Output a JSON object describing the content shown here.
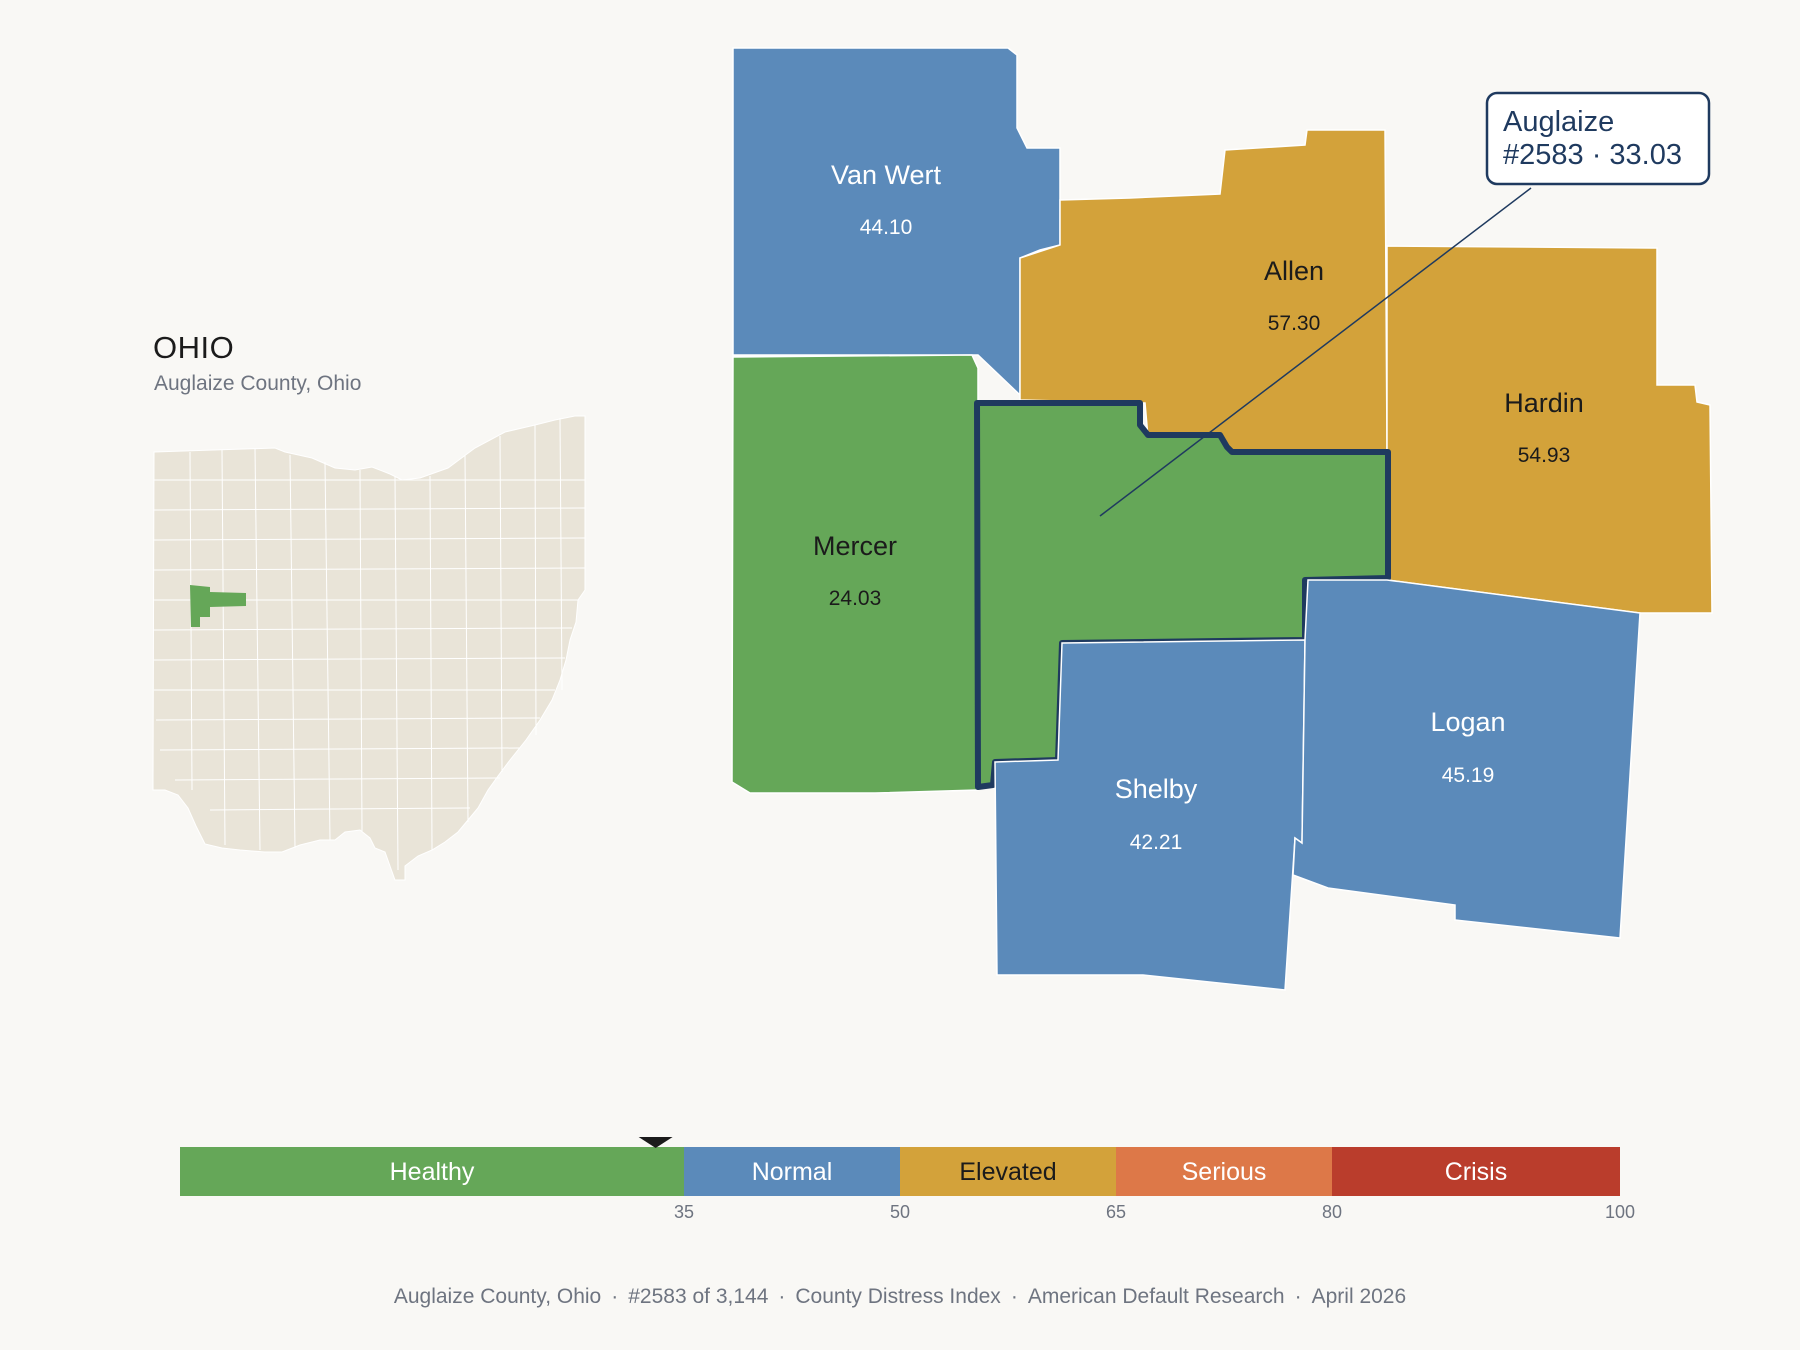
{
  "inset": {
    "title": "OHIO",
    "subtitle": "Auglaize County, Ohio"
  },
  "colors": {
    "healthy": "#65a758",
    "normal": "#5b8aba",
    "elevated": "#d3a23a",
    "serious": "#dd7848",
    "crisis": "#ba3d2c",
    "inset_fill": "#e9e4d8",
    "highlight_outline": "#1f3a5f"
  },
  "counties": {
    "van_wert": {
      "name": "Van Wert",
      "value": "44.10"
    },
    "allen": {
      "name": "Allen",
      "value": "57.30"
    },
    "hardin": {
      "name": "Hardin",
      "value": "54.93"
    },
    "mercer": {
      "name": "Mercer",
      "value": "24.03"
    },
    "shelby": {
      "name": "Shelby",
      "value": "42.21"
    },
    "logan": {
      "name": "Logan",
      "value": "45.19"
    }
  },
  "callout": {
    "line1": "Auglaize",
    "line2": "#2583 · 33.03"
  },
  "legend": {
    "segments": [
      {
        "label": "Healthy",
        "from": 0,
        "to": 35
      },
      {
        "label": "Normal",
        "from": 35,
        "to": 50
      },
      {
        "label": "Elevated",
        "from": 50,
        "to": 65
      },
      {
        "label": "Serious",
        "from": 65,
        "to": 80
      },
      {
        "label": "Crisis",
        "from": 80,
        "to": 100
      }
    ],
    "ticks": [
      "35",
      "50",
      "65",
      "80",
      "100"
    ],
    "marker_value": 33.03
  },
  "footer": {
    "county": "Auglaize County, Ohio",
    "rank": "#2583 of 3,144",
    "index": "County Distress Index",
    "org": "American Default Research",
    "date": "April 2026"
  }
}
